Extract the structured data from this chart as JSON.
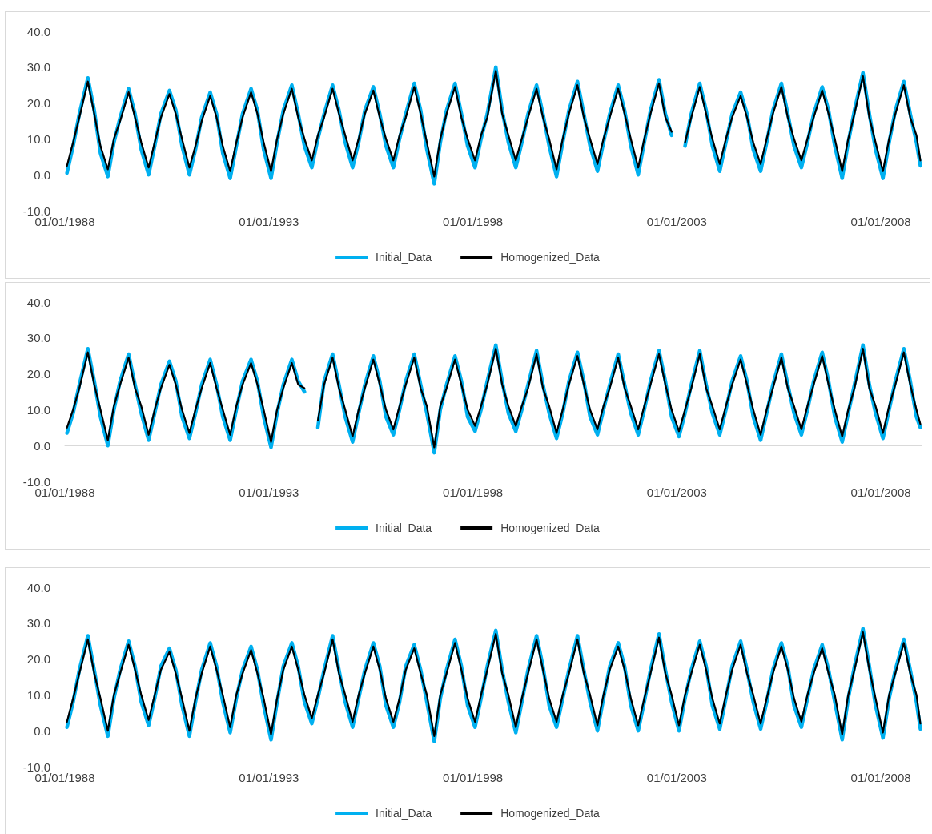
{
  "chart_data": [
    {
      "type": "line",
      "ylim": [
        -10,
        40
      ],
      "yticks": [
        {
          "value": -10,
          "label": "-10.0"
        },
        {
          "value": 0,
          "label": "0.0"
        },
        {
          "value": 10,
          "label": "10.0"
        },
        {
          "value": 20,
          "label": "20.0"
        },
        {
          "value": 30,
          "label": "30.0"
        },
        {
          "value": 40,
          "label": "40.0"
        }
      ],
      "xlim": [
        "1988-01-01",
        "2008-12-31"
      ],
      "xticks": [
        {
          "value": "1988-01-01",
          "label": "01/01/1988"
        },
        {
          "value": "1993-01-01",
          "label": "01/01/1993"
        },
        {
          "value": "1998-01-01",
          "label": "01/01/1998"
        },
        {
          "value": "2003-01-01",
          "label": "01/01/2003"
        },
        {
          "value": "2008-01-01",
          "label": "01/01/2008"
        }
      ],
      "legend": "bottom",
      "marker": "none",
      "x": [
        "1988-01-20",
        "1988-03-15",
        "1988-05-10",
        "1988-07-25",
        "1988-09-20",
        "1988-11-15",
        "1989-01-20",
        "1989-03-15",
        "1989-05-10",
        "1989-07-25",
        "1989-09-20",
        "1989-11-15",
        "1990-01-20",
        "1990-03-15",
        "1990-05-10",
        "1990-07-25",
        "1990-09-20",
        "1990-11-15",
        "1991-01-20",
        "1991-03-15",
        "1991-05-10",
        "1991-07-25",
        "1991-09-20",
        "1991-11-15",
        "1992-01-20",
        "1992-03-15",
        "1992-05-10",
        "1992-07-25",
        "1992-09-20",
        "1992-11-15",
        "1993-01-20",
        "1993-03-15",
        "1993-05-10",
        "1993-07-25",
        "1993-09-20",
        "1993-11-15",
        "1994-01-20",
        "1994-03-15",
        "1994-05-10",
        "1994-07-25",
        "1994-09-20",
        "1994-11-15",
        "1995-01-20",
        "1995-03-15",
        "1995-05-10",
        "1995-07-25",
        "1995-09-20",
        "1995-11-15",
        "1996-01-20",
        "1996-03-15",
        "1996-05-10",
        "1996-07-25",
        "1996-09-20",
        "1996-11-15",
        "1997-01-20",
        "1997-03-15",
        "1997-05-10",
        "1997-07-25",
        "1997-09-20",
        "1997-11-15",
        "1998-01-20",
        "1998-03-15",
        "1998-05-10",
        "1998-07-25",
        "1998-09-20",
        "1998-11-15",
        "1999-01-20",
        "1999-03-15",
        "1999-05-10",
        "1999-07-25",
        "1999-09-20",
        "1999-11-15",
        "2000-01-20",
        "2000-03-15",
        "2000-05-10",
        "2000-07-25",
        "2000-09-20",
        "2000-11-15",
        "2001-01-20",
        "2001-03-15",
        "2001-05-10",
        "2001-07-25",
        "2001-09-20",
        "2001-11-15",
        "2002-01-20",
        "2002-03-15",
        "2002-05-10",
        "2002-07-25",
        "2002-09-20",
        "2002-11-15",
        "2003-01-20",
        "2003-03-15",
        "2003-05-10",
        "2003-07-25",
        "2003-09-20",
        "2003-11-15",
        "2004-01-20",
        "2004-03-15",
        "2004-05-10",
        "2004-07-25",
        "2004-09-20",
        "2004-11-15",
        "2005-01-20",
        "2005-03-15",
        "2005-05-10",
        "2005-07-25",
        "2005-09-20",
        "2005-11-15",
        "2006-01-20",
        "2006-03-15",
        "2006-05-10",
        "2006-07-25",
        "2006-09-20",
        "2006-11-15",
        "2007-01-20",
        "2007-03-15",
        "2007-05-10",
        "2007-07-25",
        "2007-09-20",
        "2007-11-15",
        "2008-01-20",
        "2008-03-15",
        "2008-05-10",
        "2008-07-25",
        "2008-09-20",
        "2008-11-15",
        "2008-12-20"
      ],
      "series": [
        {
          "name": "Initial_Data",
          "color": "#00b0f0",
          "values": [
            0.5,
            8,
            17,
            27,
            18,
            6,
            -0.5,
            9,
            16,
            24,
            17,
            7,
            0,
            8,
            17,
            23.5,
            18,
            8,
            0,
            7,
            16,
            23,
            17,
            6,
            -1,
            8,
            17,
            24,
            18,
            7,
            -1,
            9,
            18,
            25,
            17,
            8,
            2,
            10,
            17,
            25,
            18,
            9,
            2,
            9,
            18,
            24.5,
            17,
            8,
            2,
            10,
            17,
            25.5,
            18,
            7,
            -2.5,
            9,
            18,
            25.5,
            17,
            8,
            2,
            10,
            17,
            30,
            18,
            9,
            2,
            9,
            17,
            25,
            17,
            8,
            -0.5,
            9,
            18,
            26,
            17,
            8,
            1,
            9,
            17,
            25,
            18,
            8,
            0,
            9,
            18,
            26.5,
            17,
            11,
            null,
            8,
            17,
            25.5,
            18,
            8,
            1,
            9,
            17,
            23,
            17,
            7,
            1,
            9,
            18,
            25.5,
            17,
            8,
            2,
            9,
            17,
            24.5,
            18,
            8,
            -1,
            9,
            18,
            28.5,
            17,
            7,
            -1,
            9,
            18,
            26,
            17,
            9,
            2.5
          ]
        },
        {
          "name": "Homogenized_Data",
          "color": "#000000",
          "values": [
            2.5,
            9,
            16,
            26,
            17,
            8,
            1.5,
            10,
            15,
            23,
            16,
            9,
            2,
            9,
            16,
            22.5,
            17,
            10,
            2,
            8,
            15,
            22,
            16,
            8,
            1,
            9,
            16,
            23,
            17,
            9,
            1,
            10,
            17,
            24,
            16,
            10,
            4,
            11,
            16,
            24,
            17,
            11,
            4,
            10,
            17,
            23.5,
            16,
            10,
            4,
            11,
            16,
            24.5,
            17,
            9,
            -0.5,
            10,
            17,
            24.5,
            16,
            10,
            4,
            11,
            16,
            29,
            17,
            11,
            4,
            10,
            16,
            24,
            16,
            10,
            1.5,
            10,
            17,
            25,
            16,
            10,
            3,
            10,
            16,
            24,
            17,
            10,
            2,
            10,
            17,
            25.5,
            16,
            12,
            null,
            9,
            16,
            24.5,
            17,
            10,
            3,
            10,
            16,
            22,
            16,
            9,
            3,
            10,
            17,
            24.5,
            16,
            10,
            4,
            10,
            16,
            23.5,
            17,
            10,
            1,
            10,
            17,
            27.5,
            16,
            9,
            1,
            10,
            17,
            25,
            16,
            11,
            4
          ]
        }
      ]
    },
    {
      "type": "line",
      "ylim": [
        -10,
        40
      ],
      "yticks": [
        {
          "value": -10,
          "label": "-10.0"
        },
        {
          "value": 0,
          "label": "0.0"
        },
        {
          "value": 10,
          "label": "10.0"
        },
        {
          "value": 20,
          "label": "20.0"
        },
        {
          "value": 30,
          "label": "30.0"
        },
        {
          "value": 40,
          "label": "40.0"
        }
      ],
      "xlim": [
        "1988-01-01",
        "2008-12-31"
      ],
      "xticks": [
        {
          "value": "1988-01-01",
          "label": "01/01/1988"
        },
        {
          "value": "1993-01-01",
          "label": "01/01/1993"
        },
        {
          "value": "1998-01-01",
          "label": "01/01/1998"
        },
        {
          "value": "2003-01-01",
          "label": "01/01/2003"
        },
        {
          "value": "2008-01-01",
          "label": "01/01/2008"
        }
      ],
      "legend": "bottom",
      "marker": "none",
      "x": [
        "1988-01-20",
        "1988-03-15",
        "1988-05-10",
        "1988-07-25",
        "1988-09-20",
        "1988-11-15",
        "1989-01-20",
        "1989-03-15",
        "1989-05-10",
        "1989-07-25",
        "1989-09-20",
        "1989-11-15",
        "1990-01-20",
        "1990-03-15",
        "1990-05-10",
        "1990-07-25",
        "1990-09-20",
        "1990-11-15",
        "1991-01-20",
        "1991-03-15",
        "1991-05-10",
        "1991-07-25",
        "1991-09-20",
        "1991-11-15",
        "1992-01-20",
        "1992-03-15",
        "1992-05-10",
        "1992-07-25",
        "1992-09-20",
        "1992-11-15",
        "1993-01-20",
        "1993-03-15",
        "1993-05-10",
        "1993-07-25",
        "1993-09-20",
        "1993-11-15",
        "1994-01-20",
        "1994-03-15",
        "1994-05-10",
        "1994-07-25",
        "1994-09-20",
        "1994-11-15",
        "1995-01-20",
        "1995-03-15",
        "1995-05-10",
        "1995-07-25",
        "1995-09-20",
        "1995-11-15",
        "1996-01-20",
        "1996-03-15",
        "1996-05-10",
        "1996-07-25",
        "1996-09-20",
        "1996-11-15",
        "1997-01-20",
        "1997-03-15",
        "1997-05-10",
        "1997-07-25",
        "1997-09-20",
        "1997-11-15",
        "1998-01-20",
        "1998-03-15",
        "1998-05-10",
        "1998-07-25",
        "1998-09-20",
        "1998-11-15",
        "1999-01-20",
        "1999-03-15",
        "1999-05-10",
        "1999-07-25",
        "1999-09-20",
        "1999-11-15",
        "2000-01-20",
        "2000-03-15",
        "2000-05-10",
        "2000-07-25",
        "2000-09-20",
        "2000-11-15",
        "2001-01-20",
        "2001-03-15",
        "2001-05-10",
        "2001-07-25",
        "2001-09-20",
        "2001-11-15",
        "2002-01-20",
        "2002-03-15",
        "2002-05-10",
        "2002-07-25",
        "2002-09-20",
        "2002-11-15",
        "2003-01-20",
        "2003-03-15",
        "2003-05-10",
        "2003-07-25",
        "2003-09-20",
        "2003-11-15",
        "2004-01-20",
        "2004-03-15",
        "2004-05-10",
        "2004-07-25",
        "2004-09-20",
        "2004-11-15",
        "2005-01-20",
        "2005-03-15",
        "2005-05-10",
        "2005-07-25",
        "2005-09-20",
        "2005-11-15",
        "2006-01-20",
        "2006-03-15",
        "2006-05-10",
        "2006-07-25",
        "2006-09-20",
        "2006-11-15",
        "2007-01-20",
        "2007-03-15",
        "2007-05-10",
        "2007-07-25",
        "2007-09-20",
        "2007-11-15",
        "2008-01-20",
        "2008-03-15",
        "2008-05-10",
        "2008-07-25",
        "2008-09-20",
        "2008-11-15",
        "2008-12-20"
      ],
      "series": [
        {
          "name": "Initial_Data",
          "color": "#00b0f0",
          "values": [
            3.5,
            9,
            17,
            27,
            18,
            8,
            0,
            10,
            18,
            25.5,
            17,
            9,
            1.5,
            9,
            17,
            23.5,
            18,
            8,
            2,
            9,
            17,
            24,
            17,
            8,
            1.5,
            10,
            18,
            24,
            18,
            8,
            -0.5,
            9,
            17,
            24,
            18,
            15,
            null,
            5,
            18,
            25.5,
            17,
            8,
            1,
            9,
            17,
            25,
            18,
            8,
            3,
            10,
            18,
            25.5,
            17,
            9,
            -2,
            10,
            17,
            25,
            18,
            8,
            4,
            10,
            18,
            28,
            18,
            9,
            4,
            10,
            17,
            26.5,
            17,
            9,
            2,
            9,
            18,
            26,
            18,
            8,
            3,
            10,
            17,
            25.5,
            17,
            9,
            3,
            10,
            18,
            26.5,
            18,
            8,
            2.5,
            9,
            17,
            26.5,
            17,
            9,
            3,
            10,
            18,
            25,
            18,
            8,
            1.5,
            9,
            17,
            25.5,
            17,
            9,
            3,
            10,
            18,
            26,
            18,
            8,
            1,
            9,
            17,
            28,
            17,
            9,
            2,
            10,
            18,
            27,
            18,
            8,
            5
          ]
        },
        {
          "name": "Homogenized_Data",
          "color": "#000000",
          "values": [
            5,
            10,
            16,
            26,
            17,
            10,
            1.5,
            11,
            17,
            24.5,
            16,
            11,
            3,
            10,
            16,
            22.5,
            17,
            10,
            3.5,
            10,
            16,
            23,
            16,
            10,
            3,
            11,
            17,
            23,
            17,
            10,
            1,
            10,
            16,
            23,
            17,
            16,
            null,
            7,
            17,
            24.5,
            16,
            10,
            2.5,
            10,
            16,
            24,
            17,
            10,
            4.5,
            11,
            17,
            24.5,
            16,
            11,
            -0.5,
            11,
            16,
            24,
            17,
            10,
            5.5,
            11,
            17,
            27,
            17,
            11,
            5.5,
            11,
            16,
            25.5,
            16,
            11,
            3.5,
            10,
            17,
            25,
            17,
            10,
            4.5,
            11,
            16,
            24.5,
            16,
            11,
            4.5,
            11,
            17,
            25.5,
            17,
            10,
            4,
            10,
            16,
            25.5,
            16,
            11,
            4.5,
            11,
            17,
            24,
            17,
            10,
            3,
            10,
            16,
            24.5,
            16,
            11,
            4.5,
            11,
            17,
            25,
            17,
            10,
            2.5,
            10,
            16,
            27,
            16,
            11,
            3.5,
            11,
            17,
            26,
            17,
            10,
            6
          ]
        }
      ]
    },
    {
      "type": "line",
      "ylim": [
        -10,
        40
      ],
      "yticks": [
        {
          "value": -10,
          "label": "-10.0"
        },
        {
          "value": 0,
          "label": "0.0"
        },
        {
          "value": 10,
          "label": "10.0"
        },
        {
          "value": 20,
          "label": "20.0"
        },
        {
          "value": 30,
          "label": "30.0"
        },
        {
          "value": 40,
          "label": "40.0"
        }
      ],
      "xlim": [
        "1988-01-01",
        "2008-12-31"
      ],
      "xticks": [
        {
          "value": "1988-01-01",
          "label": "01/01/1988"
        },
        {
          "value": "1993-01-01",
          "label": "01/01/1993"
        },
        {
          "value": "1998-01-01",
          "label": "01/01/1998"
        },
        {
          "value": "2003-01-01",
          "label": "01/01/2003"
        },
        {
          "value": "2008-01-01",
          "label": "01/01/2008"
        }
      ],
      "legend": "bottom",
      "marker": "none",
      "x": [
        "1988-01-20",
        "1988-03-15",
        "1988-05-10",
        "1988-07-25",
        "1988-09-20",
        "1988-11-15",
        "1989-01-20",
        "1989-03-15",
        "1989-05-10",
        "1989-07-25",
        "1989-09-20",
        "1989-11-15",
        "1990-01-20",
        "1990-03-15",
        "1990-05-10",
        "1990-07-25",
        "1990-09-20",
        "1990-11-15",
        "1991-01-20",
        "1991-03-15",
        "1991-05-10",
        "1991-07-25",
        "1991-09-20",
        "1991-11-15",
        "1992-01-20",
        "1992-03-15",
        "1992-05-10",
        "1992-07-25",
        "1992-09-20",
        "1992-11-15",
        "1993-01-20",
        "1993-03-15",
        "1993-05-10",
        "1993-07-25",
        "1993-09-20",
        "1993-11-15",
        "1994-01-20",
        "1994-03-15",
        "1994-05-10",
        "1994-07-25",
        "1994-09-20",
        "1994-11-15",
        "1995-01-20",
        "1995-03-15",
        "1995-05-10",
        "1995-07-25",
        "1995-09-20",
        "1995-11-15",
        "1996-01-20",
        "1996-03-15",
        "1996-05-10",
        "1996-07-25",
        "1996-09-20",
        "1996-11-15",
        "1997-01-20",
        "1997-03-15",
        "1997-05-10",
        "1997-07-25",
        "1997-09-20",
        "1997-11-15",
        "1998-01-20",
        "1998-03-15",
        "1998-05-10",
        "1998-07-25",
        "1998-09-20",
        "1998-11-15",
        "1999-01-20",
        "1999-03-15",
        "1999-05-10",
        "1999-07-25",
        "1999-09-20",
        "1999-11-15",
        "2000-01-20",
        "2000-03-15",
        "2000-05-10",
        "2000-07-25",
        "2000-09-20",
        "2000-11-15",
        "2001-01-20",
        "2001-03-15",
        "2001-05-10",
        "2001-07-25",
        "2001-09-20",
        "2001-11-15",
        "2002-01-20",
        "2002-03-15",
        "2002-05-10",
        "2002-07-25",
        "2002-09-20",
        "2002-11-15",
        "2003-01-20",
        "2003-03-15",
        "2003-05-10",
        "2003-07-25",
        "2003-09-20",
        "2003-11-15",
        "2004-01-20",
        "2004-03-15",
        "2004-05-10",
        "2004-07-25",
        "2004-09-20",
        "2004-11-15",
        "2005-01-20",
        "2005-03-15",
        "2005-05-10",
        "2005-07-25",
        "2005-09-20",
        "2005-11-15",
        "2006-01-20",
        "2006-03-15",
        "2006-05-10",
        "2006-07-25",
        "2006-09-20",
        "2006-11-15",
        "2007-01-20",
        "2007-03-15",
        "2007-05-10",
        "2007-07-25",
        "2007-09-20",
        "2007-11-15",
        "2008-01-20",
        "2008-03-15",
        "2008-05-10",
        "2008-07-25",
        "2008-09-20",
        "2008-11-15",
        "2008-12-20"
      ],
      "series": [
        {
          "name": "Initial_Data",
          "color": "#00b0f0",
          "values": [
            1,
            8,
            17,
            26.5,
            17,
            7,
            -1.5,
            9,
            17,
            25,
            18,
            8,
            1.5,
            9,
            18,
            23,
            17,
            7,
            -1.5,
            8,
            17,
            24.5,
            18,
            8,
            -0.5,
            9,
            17,
            23.5,
            17,
            7,
            -2.5,
            8,
            18,
            24.5,
            18,
            8,
            2,
            9,
            17,
            26.5,
            17,
            8,
            1,
            9,
            17,
            24.5,
            18,
            7,
            1,
            8,
            18,
            24,
            17,
            8,
            -3,
            9,
            17,
            25.5,
            18,
            7,
            1,
            9,
            18,
            28,
            17,
            8,
            -0.5,
            8,
            17,
            26.5,
            18,
            7,
            1,
            9,
            17,
            26.5,
            17,
            8,
            0,
            9,
            18,
            24.5,
            18,
            7,
            0,
            8,
            17,
            27,
            17,
            8,
            0,
            9,
            17,
            25,
            18,
            7,
            0.5,
            9,
            18,
            25,
            17,
            8,
            0.5,
            8,
            17,
            24.5,
            18,
            7,
            1,
            9,
            17,
            24,
            17,
            8,
            -2.5,
            9,
            18,
            28.5,
            18,
            7,
            -2,
            9,
            17,
            25.5,
            17,
            8,
            0.5
          ]
        },
        {
          "name": "Homogenized_Data",
          "color": "#000000",
          "values": [
            2.5,
            9,
            16,
            25.5,
            16,
            9,
            0,
            10,
            16,
            24,
            17,
            10,
            3,
            10,
            17,
            22,
            16,
            9,
            0,
            9,
            16,
            23.5,
            17,
            10,
            1,
            10,
            16,
            22.5,
            16,
            9,
            -1,
            9,
            17,
            23.5,
            17,
            10,
            3.5,
            10,
            16,
            25.5,
            16,
            10,
            2.5,
            10,
            16,
            23.5,
            17,
            9,
            2.5,
            9,
            17,
            23,
            16,
            10,
            -1.5,
            10,
            16,
            24.5,
            17,
            9,
            2.5,
            10,
            17,
            27,
            16,
            10,
            1,
            9,
            16,
            25.5,
            17,
            9,
            2.5,
            10,
            16,
            25.5,
            16,
            10,
            1.5,
            10,
            17,
            23.5,
            17,
            9,
            1.5,
            9,
            16,
            26,
            16,
            10,
            1.5,
            10,
            16,
            24,
            17,
            9,
            2,
            10,
            17,
            24,
            16,
            10,
            2,
            9,
            16,
            23.5,
            17,
            9,
            2.5,
            10,
            16,
            23,
            16,
            10,
            -1,
            10,
            17,
            27.5,
            17,
            9,
            -0.5,
            10,
            16,
            24.5,
            16,
            10,
            2
          ]
        }
      ]
    }
  ]
}
